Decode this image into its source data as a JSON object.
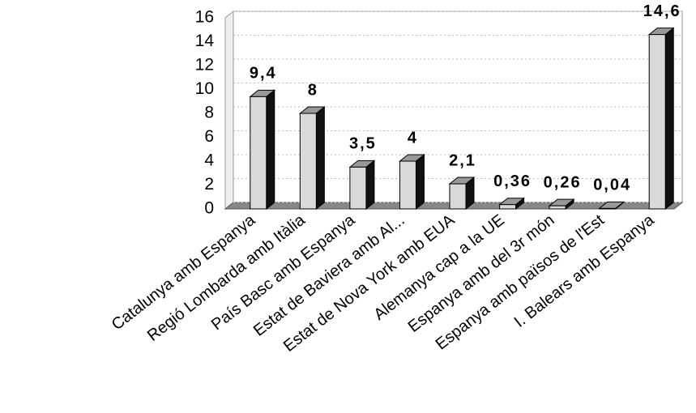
{
  "chart_data": {
    "type": "bar3d",
    "categories": [
      "Catalunya amb Espanya",
      "Regió Lombarda amb Itàlia",
      "País Basc amb Espanya",
      "Estat de Baviera amb Al...",
      "Estat de Nova York amb EUA",
      "Alemanya cap a la UE",
      "Espanya amb del 3r món",
      "Espanya amb països de l'Est",
      "I. Balears amb Espanya"
    ],
    "values": [
      9.4,
      8,
      3.5,
      4,
      2.1,
      0.36,
      0.26,
      0.04,
      14.6
    ],
    "value_labels": [
      "9,4",
      "8",
      "3,5",
      "4",
      "2,1",
      "0,36",
      "0,26",
      "0,04",
      "14,6"
    ],
    "color": "#d9d9d9",
    "ylim": [
      0,
      16
    ],
    "yticks": [
      0,
      2,
      4,
      6,
      8,
      10,
      12,
      14,
      16
    ],
    "grid": true
  }
}
